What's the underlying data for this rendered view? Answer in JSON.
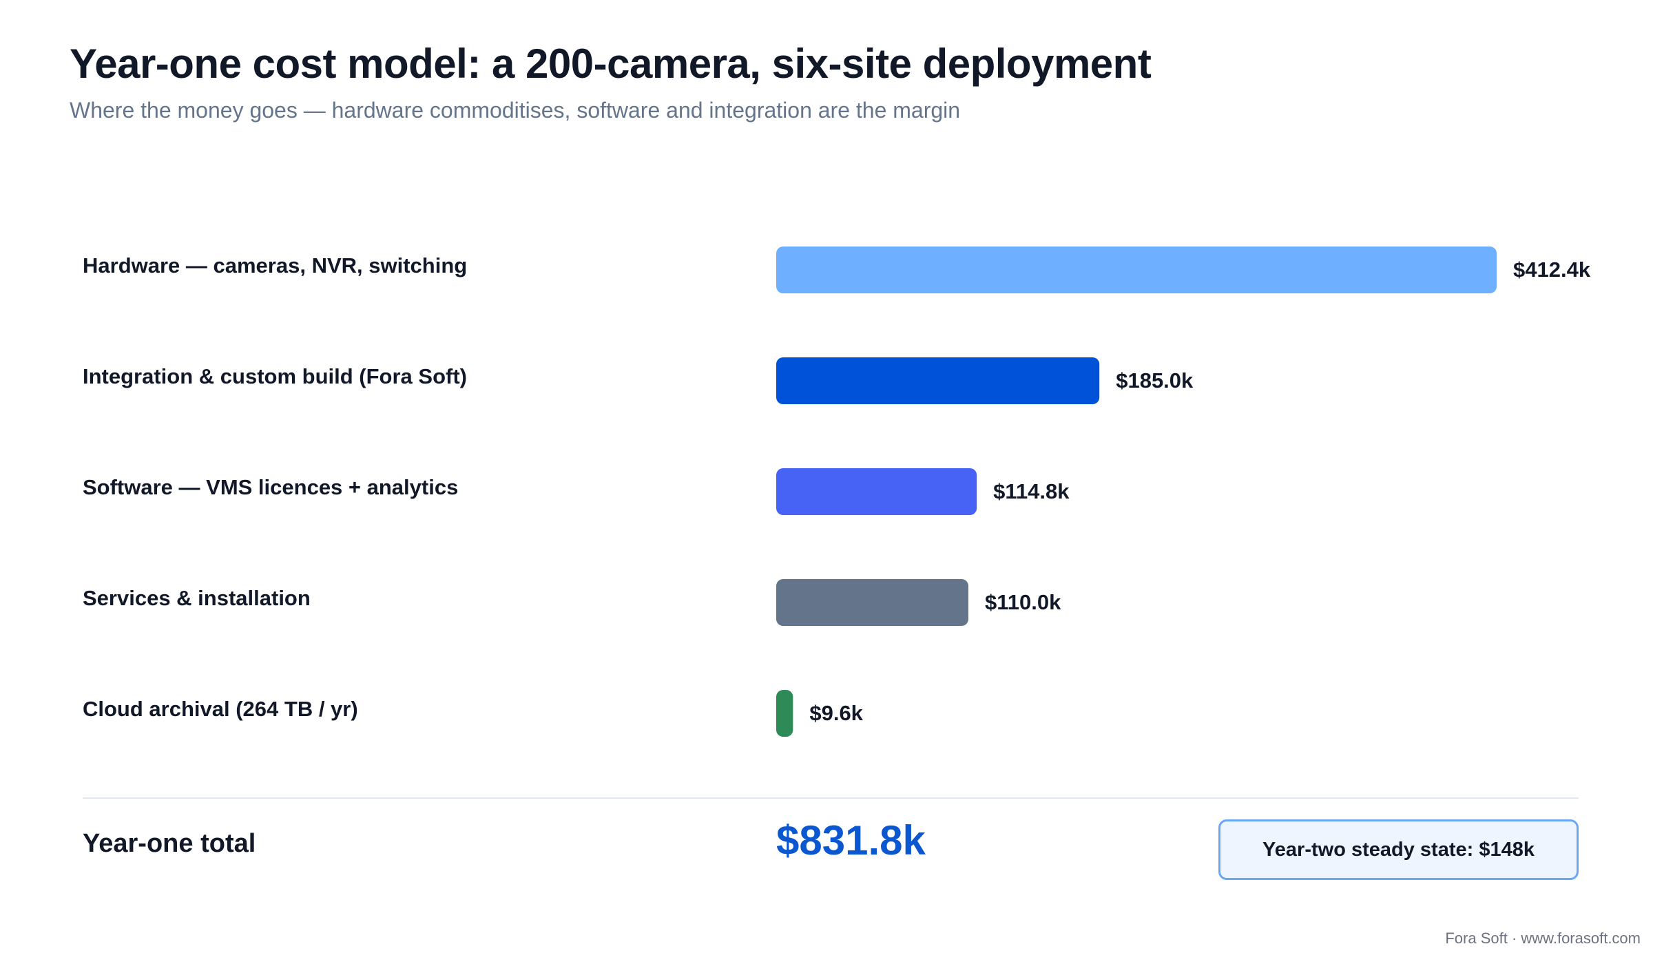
{
  "header": {
    "title": "Year-one cost model: a 200-camera, six-site deployment",
    "subtitle": "Where the money goes — hardware commoditises, software and integration are the margin"
  },
  "chart_data": {
    "type": "bar",
    "orientation": "horizontal",
    "categories": [
      "Hardware — cameras, NVR, switching",
      "Integration & custom build (Fora Soft)",
      "Software — VMS licences + analytics",
      "Services & installation",
      "Cloud archival (264 TB / yr)"
    ],
    "values": [
      412.4,
      185.0,
      114.8,
      110.0,
      9.6
    ],
    "value_labels": [
      "$412.4k",
      "$185.0k",
      "$114.8k",
      "$110.0k",
      "$9.6k"
    ],
    "colors": [
      "#6eb0ff",
      "#0052d9",
      "#4763f5",
      "#64748b",
      "#2e8b57"
    ],
    "unit": "$k",
    "xlim": [
      0,
      412.4
    ],
    "grid": false,
    "legend": "none"
  },
  "summary": {
    "total_label": "Year-one total",
    "total_value": "$831.8k",
    "steady_state": "Year-two steady state: $148k"
  },
  "footer": {
    "credit": "Fora Soft · www.forasoft.com"
  },
  "colors": {
    "total": "#0b57d0",
    "box_border": "#6aa8f5",
    "box_fill": "#eef5ff"
  }
}
